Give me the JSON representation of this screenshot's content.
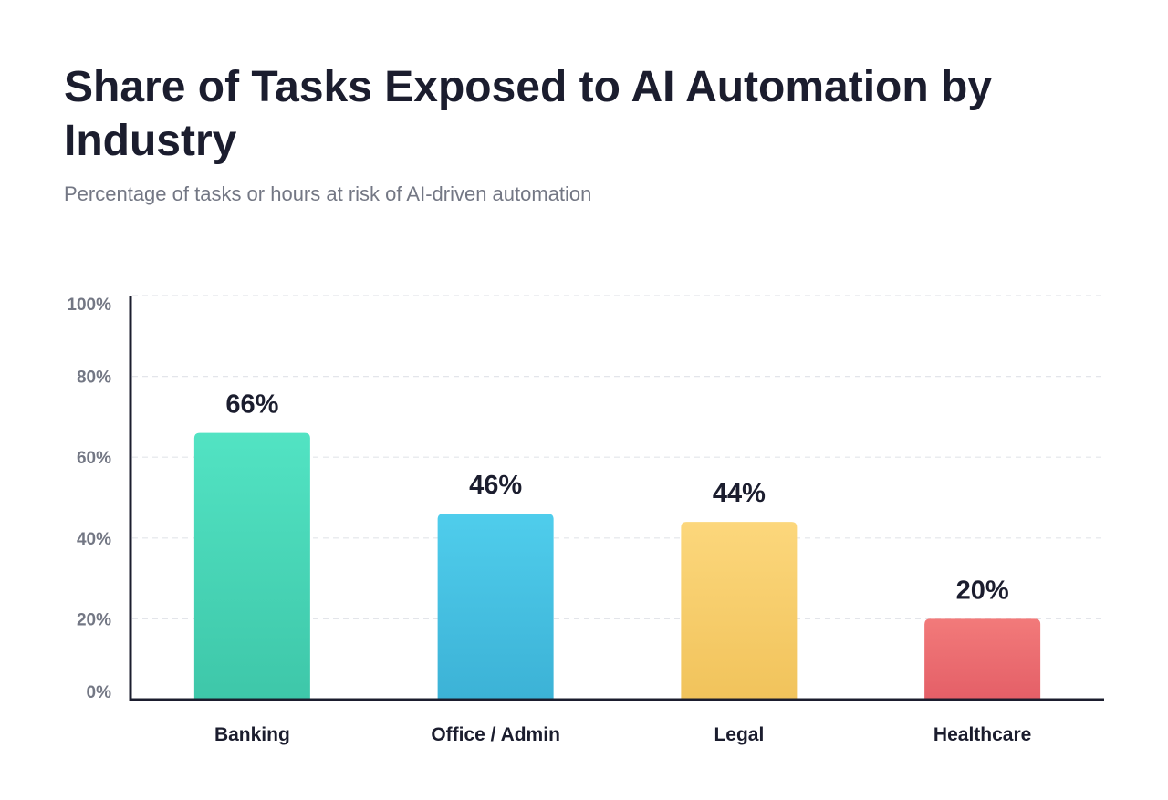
{
  "chart_data": {
    "type": "bar",
    "title": "Share of Tasks Exposed to AI Automation by Industry",
    "subtitle": "Percentage of tasks or hours at risk of AI-driven automation",
    "categories": [
      "Banking",
      "Office / Admin",
      "Legal",
      "Healthcare"
    ],
    "values": [
      66,
      46,
      44,
      20
    ],
    "data_labels": [
      "66%",
      "46%",
      "44%",
      "20%"
    ],
    "colors": [
      [
        "#52e3c3",
        "#3ec7a9"
      ],
      [
        "#4fcdec",
        "#3cb2d6"
      ],
      [
        "#fcd77c",
        "#f1c35b"
      ],
      [
        "#f27a7a",
        "#e45f67"
      ]
    ],
    "ylim": [
      0,
      100
    ],
    "yticks": [
      0,
      20,
      40,
      60,
      80,
      100
    ],
    "ytick_labels": [
      "0%",
      "20%",
      "40%",
      "60%",
      "80%",
      "100%"
    ],
    "grid": true,
    "legend": "none"
  }
}
